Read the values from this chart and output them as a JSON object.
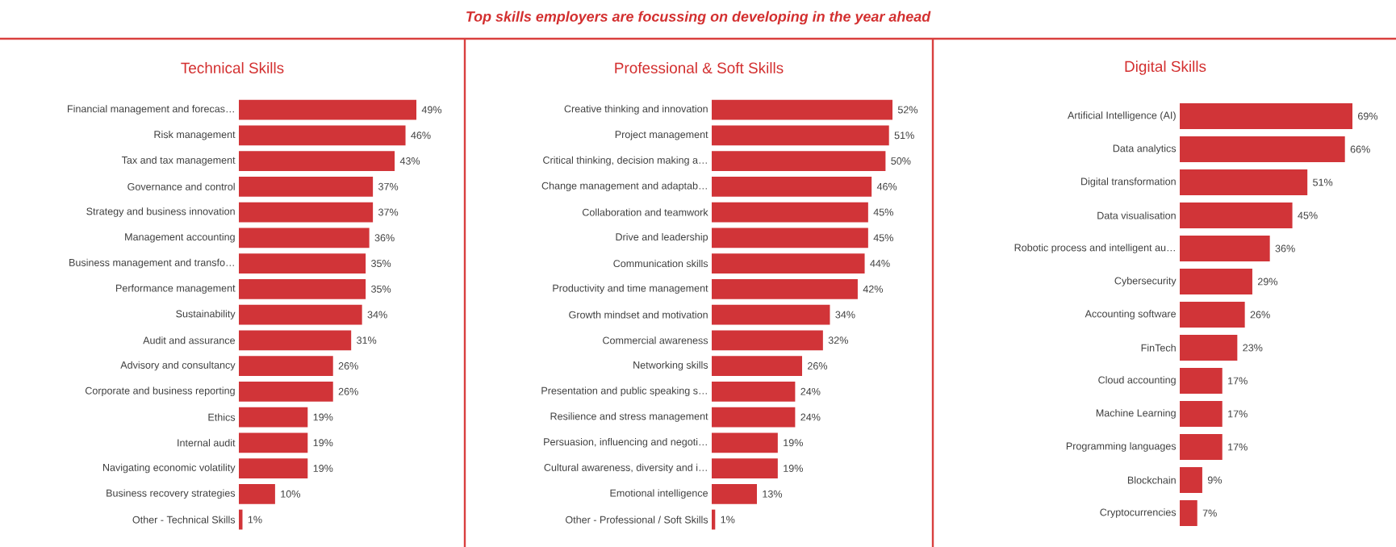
{
  "chart_data": [
    {
      "type": "bar",
      "orientation": "horizontal",
      "title": "Technical Skills",
      "annotations": [
        "Top skills employers are focussing on developing in the year ahead"
      ],
      "color": "#d13438",
      "categories": [
        "Financial management and forecas…",
        "Risk management",
        "Tax and tax management",
        "Governance and control",
        "Strategy and business innovation",
        "Management accounting",
        "Business management and transfo…",
        "Performance management",
        "Sustainability",
        "Audit and assurance",
        "Advisory and consultancy",
        "Corporate and business reporting",
        "Ethics",
        "Internal audit",
        "Navigating economic volatility",
        "Business recovery strategies",
        "Other - Technical Skills"
      ],
      "values": [
        49,
        46,
        43,
        37,
        37,
        36,
        35,
        35,
        34,
        31,
        26,
        26,
        19,
        19,
        19,
        10,
        1
      ],
      "value_labels": [
        "49%",
        "46%",
        "43%",
        "37%",
        "37%",
        "36%",
        "35%",
        "35%",
        "34%",
        "31%",
        "26%",
        "26%",
        "19%",
        "19%",
        "19%",
        "10%",
        "1%"
      ]
    },
    {
      "type": "bar",
      "orientation": "horizontal",
      "title": "Professional & Soft Skills",
      "color": "#d13438",
      "categories": [
        "Creative thinking and innovation",
        "Project management",
        "Critical thinking, decision making a…",
        "Change management and adaptab…",
        "Collaboration and teamwork",
        "Drive and leadership",
        "Communication skills",
        "Productivity and time management",
        "Growth mindset and motivation",
        "Commercial awareness",
        "Networking skills",
        "Presentation and public speaking s…",
        "Resilience and stress management",
        "Persuasion, influencing and negoti…",
        "Cultural awareness, diversity and i…",
        "Emotional intelligence",
        "Other - Professional / Soft Skills"
      ],
      "values": [
        52,
        51,
        50,
        46,
        45,
        45,
        44,
        42,
        34,
        32,
        26,
        24,
        24,
        19,
        19,
        13,
        1
      ],
      "value_labels": [
        "52%",
        "51%",
        "50%",
        "46%",
        "45%",
        "45%",
        "44%",
        "42%",
        "34%",
        "32%",
        "26%",
        "24%",
        "24%",
        "19%",
        "19%",
        "13%",
        "1%"
      ]
    },
    {
      "type": "bar",
      "orientation": "horizontal",
      "title": "Digital Skills",
      "color": "#d13438",
      "categories": [
        "Artificial Intelligence (AI)",
        "Data analytics",
        "Digital transformation",
        "Data visualisation",
        "Robotic process and intelligent au…",
        "Cybersecurity",
        "Accounting software",
        "FinTech",
        "Cloud accounting",
        "Machine Learning",
        "Programming languages",
        "Blockchain",
        "Cryptocurrencies"
      ],
      "values": [
        69,
        66,
        51,
        45,
        36,
        29,
        26,
        23,
        17,
        17,
        17,
        9,
        7
      ],
      "value_labels": [
        "69%",
        "66%",
        "51%",
        "45%",
        "36%",
        "29%",
        "26%",
        "23%",
        "17%",
        "17%",
        "17%",
        "9%",
        "7%"
      ]
    }
  ]
}
